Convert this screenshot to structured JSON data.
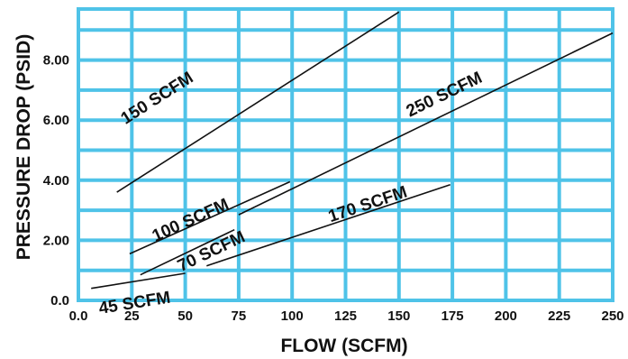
{
  "chart_data": {
    "type": "line",
    "title": "",
    "xlabel": "FLOW (SCFM)",
    "ylabel": "PRESSURE DROP (PSID)",
    "xlim": [
      0,
      250
    ],
    "ylim": [
      0,
      9.7
    ],
    "x_ticks": [
      0,
      25,
      50,
      75,
      100,
      125,
      150,
      175,
      200,
      225,
      250
    ],
    "x_tick_labels": [
      "0.0",
      "25",
      "50",
      "75",
      "100",
      "125",
      "150",
      "175",
      "200",
      "225",
      "250"
    ],
    "y_ticks": [
      0,
      2,
      4,
      6,
      8
    ],
    "y_tick_labels": [
      "0.0",
      "2.00",
      "4.00",
      "6.00",
      "8.00"
    ],
    "grid": true,
    "legend": "none",
    "colors": {
      "grid": "#4fc3e8",
      "line": "#111111",
      "text": "#111111"
    },
    "series": [
      {
        "name": "150 SCFM",
        "points": [
          [
            18,
            3.6
          ],
          [
            150,
            9.6
          ]
        ],
        "label_at": [
          22,
          5.85
        ],
        "label_angle_data": [
          [
            18,
            3.6
          ],
          [
            150,
            9.6
          ]
        ]
      },
      {
        "name": "250 SCFM",
        "points": [
          [
            75,
            2.85
          ],
          [
            250,
            8.9
          ]
        ],
        "label_at": [
          155,
          6.1
        ],
        "label_angle_data": [
          [
            75,
            2.85
          ],
          [
            250,
            8.9
          ]
        ]
      },
      {
        "name": "100 SCFM",
        "points": [
          [
            24,
            1.55
          ],
          [
            99,
            3.95
          ]
        ],
        "label_at": [
          36,
          1.95
        ],
        "label_angle_data": [
          [
            24,
            1.55
          ],
          [
            99,
            3.95
          ]
        ]
      },
      {
        "name": "170 SCFM",
        "points": [
          [
            60,
            1.15
          ],
          [
            174,
            3.85
          ]
        ],
        "label_at": [
          118,
          2.6
        ],
        "label_angle_data": [
          [
            60,
            1.15
          ],
          [
            174,
            3.85
          ]
        ]
      },
      {
        "name": "70 SCFM",
        "points": [
          [
            29,
            0.85
          ],
          [
            73,
            2.35
          ]
        ],
        "label_at": [
          48,
          0.95
        ],
        "label_angle_data": [
          [
            29,
            0.85
          ],
          [
            73,
            2.35
          ]
        ]
      },
      {
        "name": "45 SCFM",
        "points": [
          [
            6,
            0.4
          ],
          [
            50,
            0.9
          ]
        ],
        "label_at": [
          10,
          -0.45
        ],
        "label_angle_data": [
          [
            6,
            0.4
          ],
          [
            50,
            0.9
          ]
        ]
      }
    ]
  }
}
